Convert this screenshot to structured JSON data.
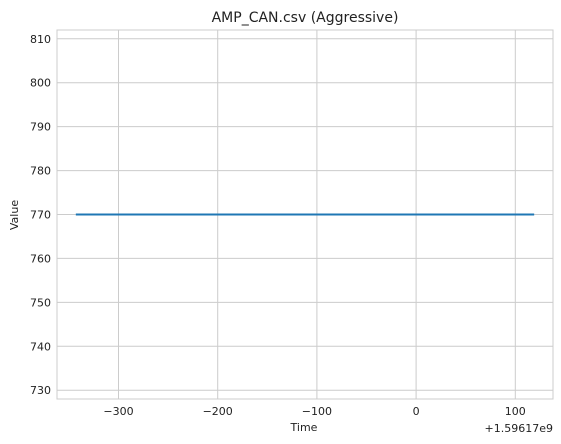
{
  "chart_data": {
    "type": "line",
    "title": "AMP_CAN.csv (Aggressive)",
    "xlabel": "Time",
    "ylabel": "Value",
    "x_offset_label": "+1.59617e9",
    "xlim": [
      -362,
      138
    ],
    "ylim": [
      728,
      812
    ],
    "x_ticks": [
      -300,
      -200,
      -100,
      0,
      100
    ],
    "x_tick_labels": [
      "−300",
      "−200",
      "−100",
      "0",
      "100"
    ],
    "y_ticks": [
      730,
      740,
      750,
      760,
      770,
      780,
      790,
      800,
      810
    ],
    "y_tick_labels": [
      "730",
      "740",
      "750",
      "760",
      "770",
      "780",
      "790",
      "800",
      "810"
    ],
    "grid": true,
    "series": [
      {
        "x": [
          -342,
          118
        ],
        "y": [
          770,
          770
        ],
        "color": "#1f77b4"
      }
    ]
  }
}
